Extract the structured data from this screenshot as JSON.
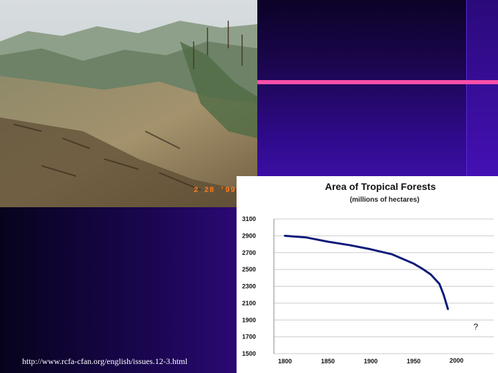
{
  "photo": {
    "date_stamp": "2 28 '99"
  },
  "source_url": "http://www.rcfa-cfan.org/english/issues.12-3.html",
  "colors": {
    "accent_rule": "#ff4fa8",
    "line": "#0a1a78",
    "background": "#3b0c98"
  },
  "chart_data": {
    "type": "line",
    "title": "Area of Tropical Forests",
    "subtitle": "(millions of hectares)",
    "xlabel": "",
    "ylabel": "",
    "xlim": [
      1800,
      2000
    ],
    "ylim": [
      1500,
      3100
    ],
    "x_ticks": [
      "1800",
      "1850",
      "1900",
      "1950",
      "2000"
    ],
    "y_ticks": [
      "3100",
      "2900",
      "2700",
      "2500",
      "2300",
      "2100",
      "1900",
      "1700",
      "1500"
    ],
    "grid": "horizontal",
    "annotation": "?",
    "series": [
      {
        "x": [
          1800,
          1825,
          1850,
          1875,
          1900,
          1925,
          1950,
          1960,
          1970,
          1980,
          1985,
          1990
        ],
        "y": [
          2900,
          2880,
          2830,
          2790,
          2740,
          2680,
          2570,
          2510,
          2440,
          2330,
          2200,
          2030
        ]
      }
    ]
  }
}
